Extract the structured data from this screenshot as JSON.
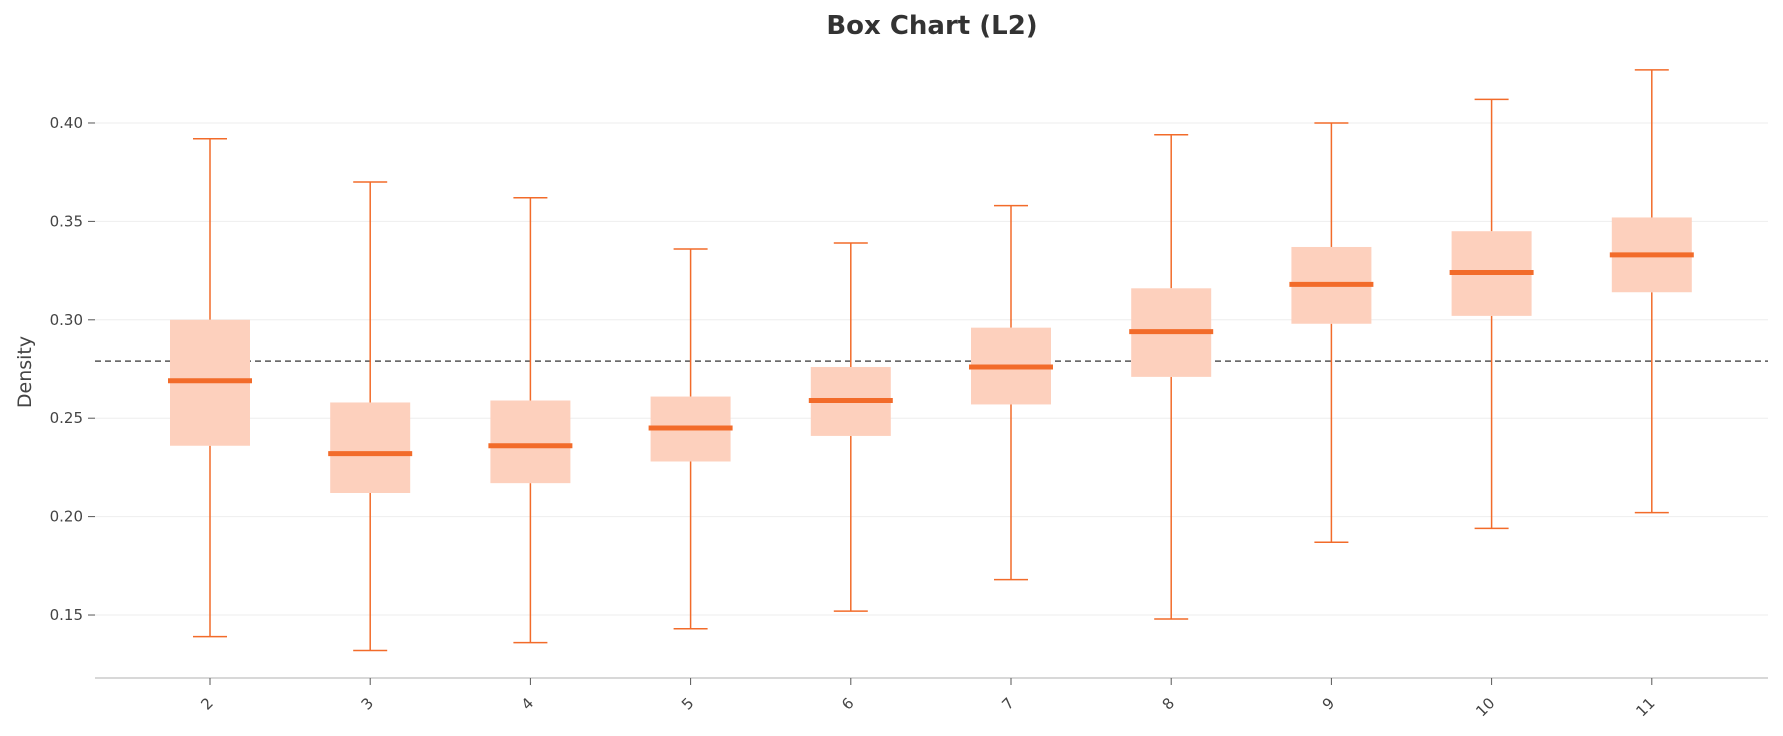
{
  "chart_data": {
    "type": "box",
    "title": "Box Chart (L2)",
    "xlabel": "",
    "ylabel": "Density",
    "ylim": [
      0.118,
      0.432
    ],
    "yticks": [
      "0.15",
      "0.20",
      "0.25",
      "0.30",
      "0.35",
      "0.40"
    ],
    "categories": [
      "2",
      "3",
      "4",
      "5",
      "6",
      "7",
      "8",
      "9",
      "10",
      "11"
    ],
    "boxes": [
      {
        "whisker_low": 0.139,
        "q1": 0.236,
        "median": 0.269,
        "q3": 0.3,
        "whisker_high": 0.392
      },
      {
        "whisker_low": 0.132,
        "q1": 0.212,
        "median": 0.232,
        "q3": 0.258,
        "whisker_high": 0.37
      },
      {
        "whisker_low": 0.136,
        "q1": 0.217,
        "median": 0.236,
        "q3": 0.259,
        "whisker_high": 0.362
      },
      {
        "whisker_low": 0.143,
        "q1": 0.228,
        "median": 0.245,
        "q3": 0.261,
        "whisker_high": 0.336
      },
      {
        "whisker_low": 0.152,
        "q1": 0.241,
        "median": 0.259,
        "q3": 0.276,
        "whisker_high": 0.339
      },
      {
        "whisker_low": 0.168,
        "q1": 0.257,
        "median": 0.276,
        "q3": 0.296,
        "whisker_high": 0.358
      },
      {
        "whisker_low": 0.148,
        "q1": 0.271,
        "median": 0.294,
        "q3": 0.316,
        "whisker_high": 0.394
      },
      {
        "whisker_low": 0.187,
        "q1": 0.298,
        "median": 0.318,
        "q3": 0.337,
        "whisker_high": 0.4
      },
      {
        "whisker_low": 0.194,
        "q1": 0.302,
        "median": 0.324,
        "q3": 0.345,
        "whisker_high": 0.412
      },
      {
        "whisker_low": 0.202,
        "q1": 0.314,
        "median": 0.333,
        "q3": 0.352,
        "whisker_high": 0.427
      }
    ],
    "reference_line": 0.279,
    "grid": true,
    "legend": "none",
    "colors": {
      "box_fill": "#fdd0bd",
      "median": "#f26b2a",
      "whisker": "#f26b2a",
      "reference_line": "#555555",
      "grid": "#eeeeee",
      "axis": "#cccccc",
      "text": "#444444"
    }
  }
}
